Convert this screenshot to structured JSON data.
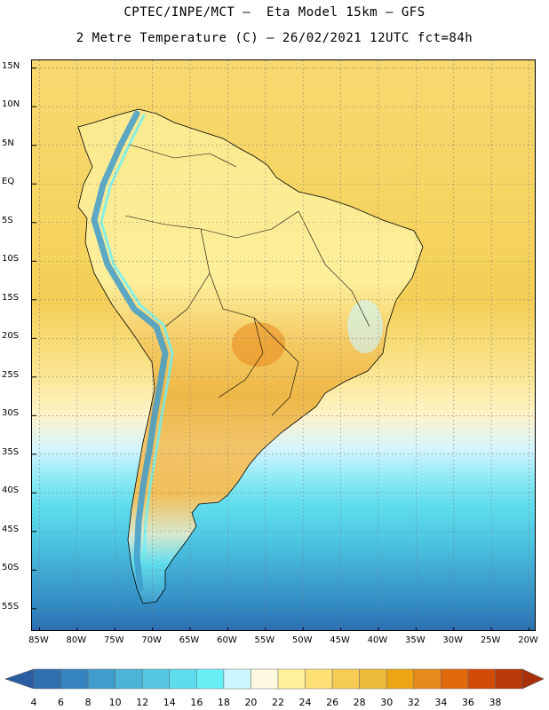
{
  "title_line1": "CPTEC/INPE/MCT –  Eta Model 15km – GFS",
  "title_line2": "2 Metre Temperature (C) – 26/02/2021 12UTC fct=84h",
  "map": {
    "extent": {
      "lon_min": -86,
      "lon_max": -19,
      "lat_min": -58,
      "lat_max": 16
    },
    "lat_ticks": [
      {
        "value": 15,
        "label": "15N"
      },
      {
        "value": 10,
        "label": "10N"
      },
      {
        "value": 5,
        "label": "5N"
      },
      {
        "value": 0,
        "label": "EQ"
      },
      {
        "value": -5,
        "label": "5S"
      },
      {
        "value": -10,
        "label": "10S"
      },
      {
        "value": -15,
        "label": "15S"
      },
      {
        "value": -20,
        "label": "20S"
      },
      {
        "value": -25,
        "label": "25S"
      },
      {
        "value": -30,
        "label": "30S"
      },
      {
        "value": -35,
        "label": "35S"
      },
      {
        "value": -40,
        "label": "40S"
      },
      {
        "value": -45,
        "label": "45S"
      },
      {
        "value": -50,
        "label": "50S"
      },
      {
        "value": -55,
        "label": "55S"
      }
    ],
    "lon_ticks": [
      {
        "value": -85,
        "label": "85W"
      },
      {
        "value": -80,
        "label": "80W"
      },
      {
        "value": -75,
        "label": "75W"
      },
      {
        "value": -70,
        "label": "70W"
      },
      {
        "value": -65,
        "label": "65W"
      },
      {
        "value": -60,
        "label": "60W"
      },
      {
        "value": -55,
        "label": "55W"
      },
      {
        "value": -50,
        "label": "50W"
      },
      {
        "value": -45,
        "label": "45W"
      },
      {
        "value": -40,
        "label": "40W"
      },
      {
        "value": -35,
        "label": "35W"
      },
      {
        "value": -30,
        "label": "30W"
      },
      {
        "value": -25,
        "label": "25W"
      },
      {
        "value": -20,
        "label": "20W"
      }
    ]
  },
  "colorbar": {
    "labels": [
      "4",
      "6",
      "8",
      "10",
      "12",
      "14",
      "16",
      "18",
      "20",
      "22",
      "24",
      "26",
      "28",
      "30",
      "32",
      "34",
      "36",
      "38"
    ],
    "colors": [
      "#2f6fae",
      "#3583bf",
      "#3f9ccb",
      "#4bb4d8",
      "#56c8e2",
      "#5fdcec",
      "#69f0f6",
      "#ccf6ff",
      "#fff8e0",
      "#fff29a",
      "#ffe074",
      "#f6cc55",
      "#eeba3c",
      "#eea514",
      "#e8891c",
      "#e06a0c",
      "#d04c06",
      "#b83808"
    ],
    "low_arrow_color": "#2a5ea0",
    "high_arrow_color": "#a8300a"
  }
}
